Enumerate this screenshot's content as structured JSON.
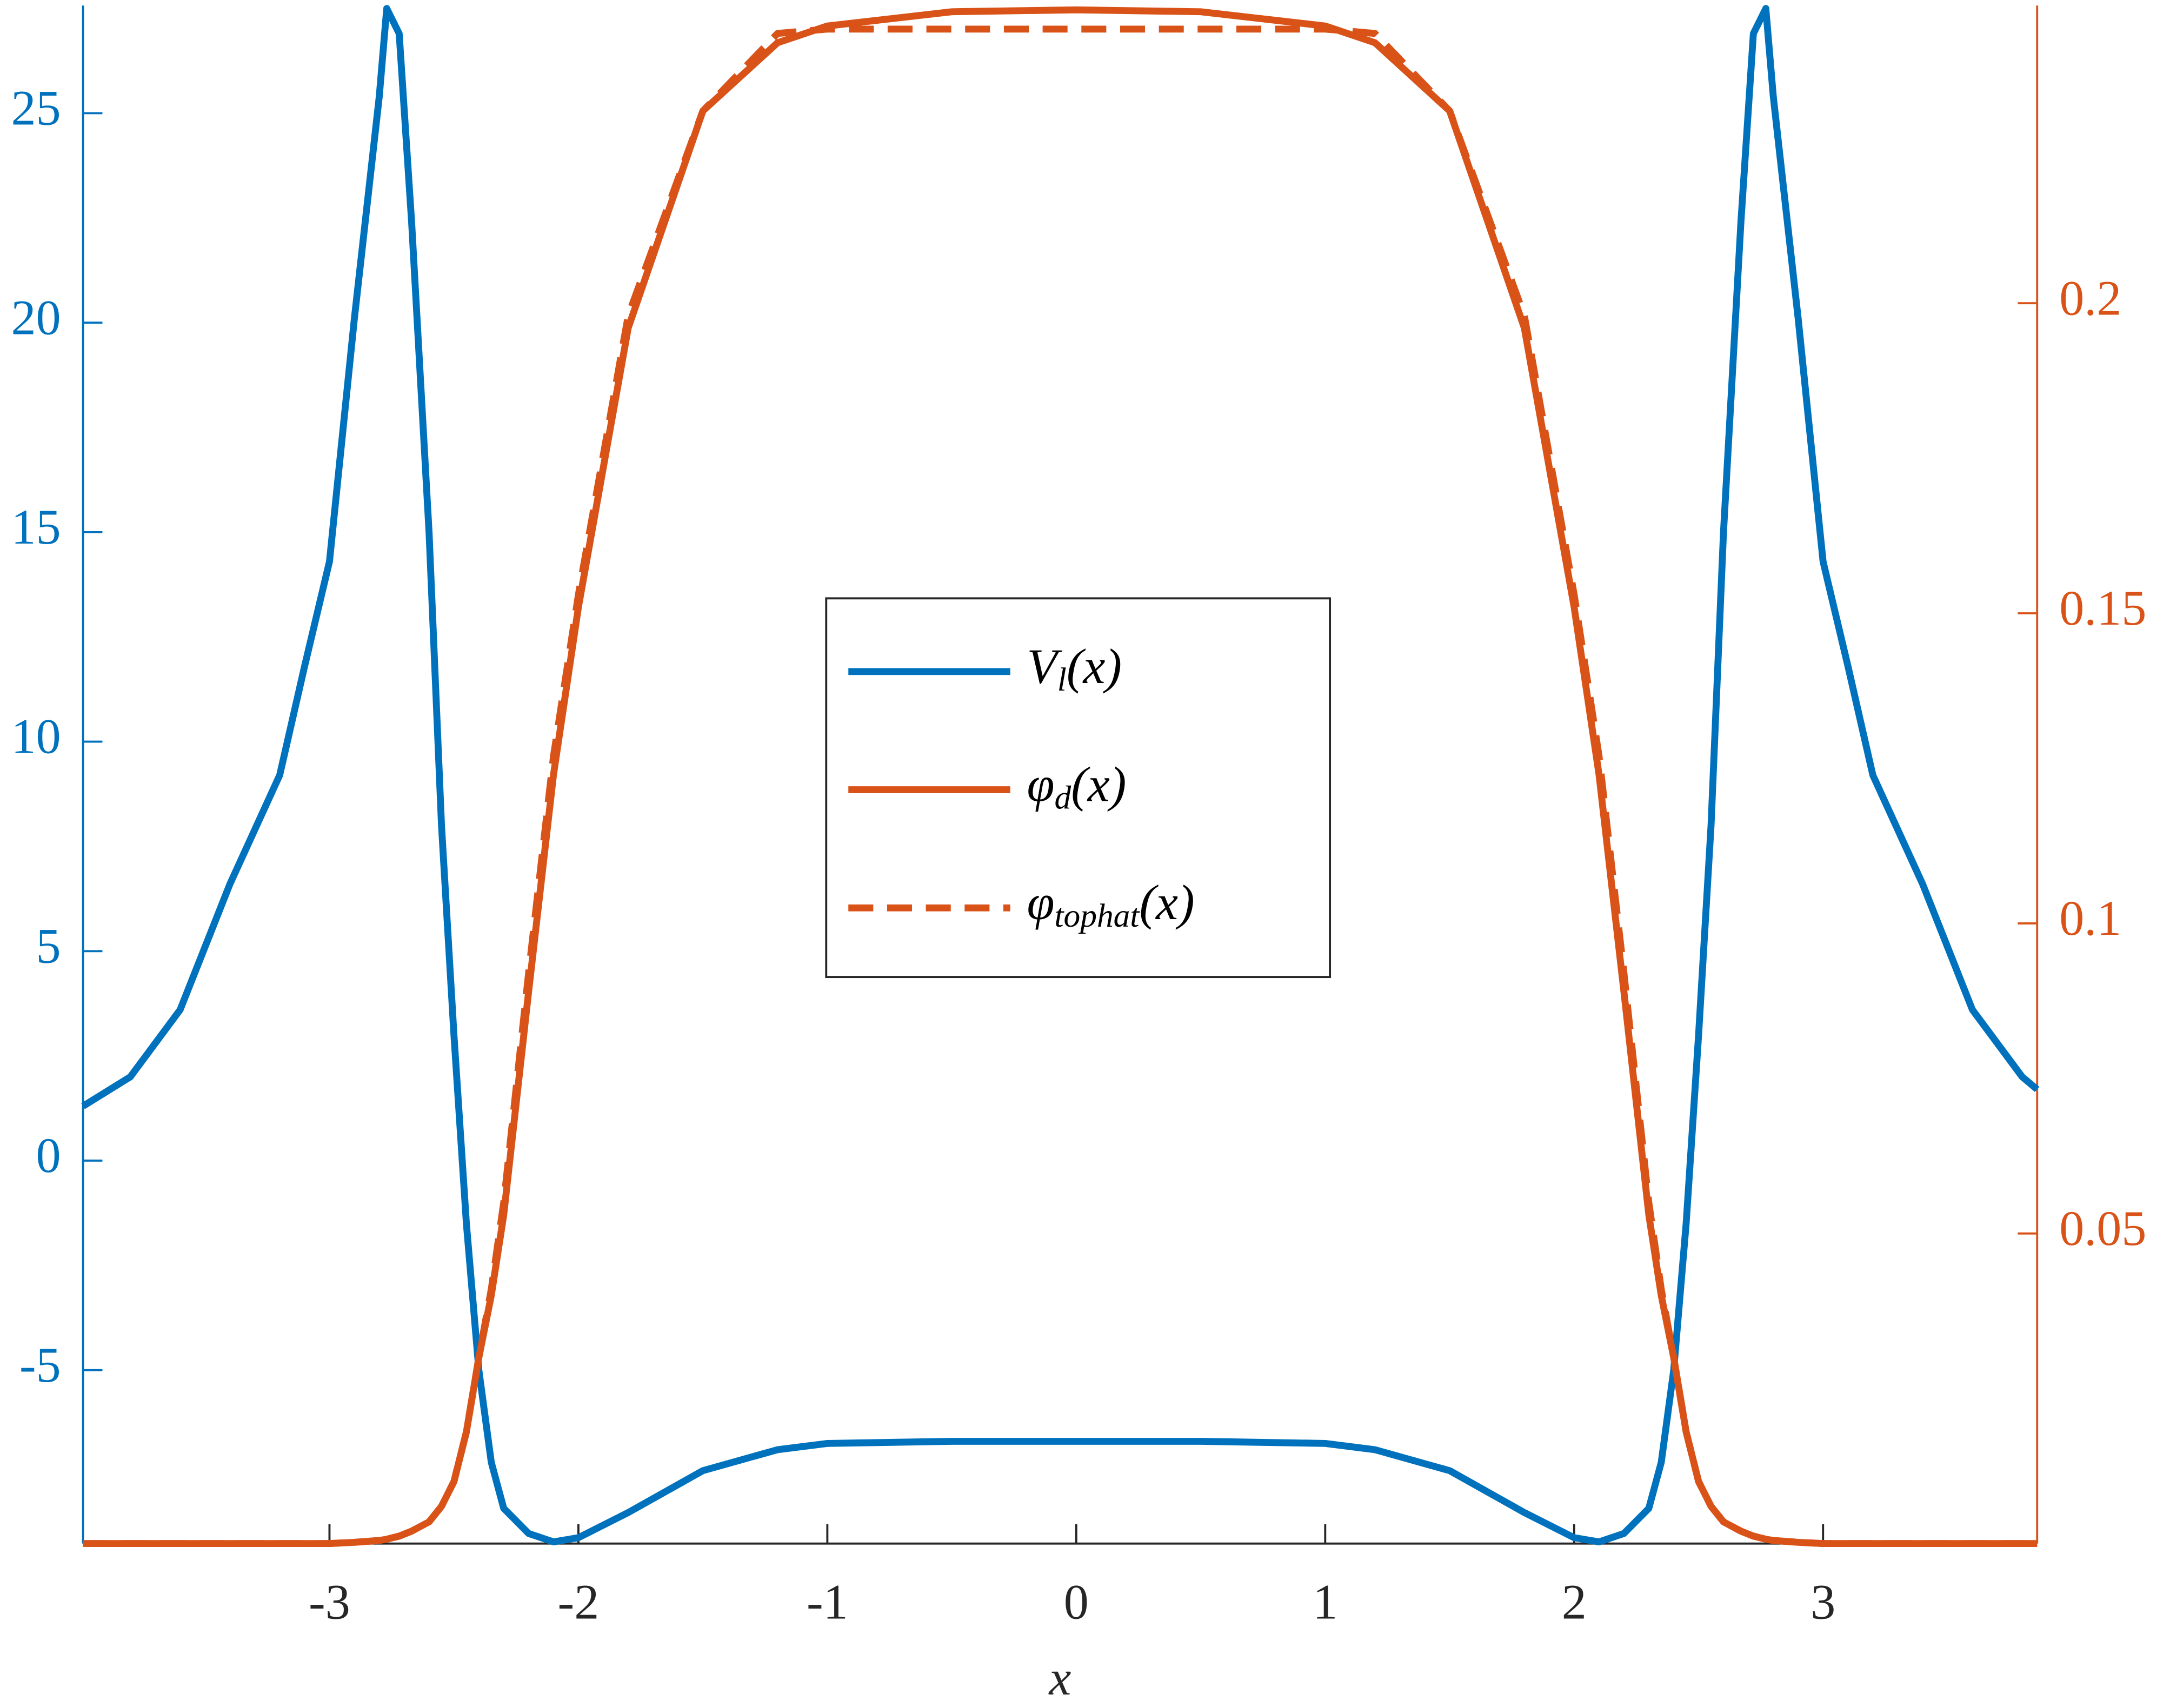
{
  "chart_data": {
    "type": "line",
    "x_label": "x",
    "x": [
      -3.99,
      -3.8,
      -3.6,
      -3.4,
      -3.2,
      -3.1,
      -3.0,
      -2.9,
      -2.8,
      -2.77,
      -2.72,
      -2.67,
      -2.6,
      -2.55,
      -2.5,
      -2.45,
      -2.4,
      -2.35,
      -2.3,
      -2.2,
      -2.1,
      -2.0,
      -1.8,
      -1.5,
      -1.2,
      -1.0,
      -0.5,
      0,
      0.5,
      1.0,
      1.2,
      1.5,
      1.8,
      2.0,
      2.1,
      2.2,
      2.3,
      2.35,
      2.4,
      2.45,
      2.5,
      2.55,
      2.6,
      2.67,
      2.72,
      2.77,
      2.8,
      2.9,
      3.0,
      3.1,
      3.2,
      3.4,
      3.6,
      3.8,
      3.86
    ],
    "series": [
      {
        "name": "V_l(x)",
        "color": "#0072BD",
        "dash": false,
        "values": [
          1.3,
          2.0,
          3.6,
          6.6,
          9.2,
          11.8,
          14.3,
          20.1,
          25.4,
          27.5,
          26.9,
          22.4,
          15,
          8,
          3,
          -1.5,
          -5,
          -7.2,
          -8.3,
          -8.9,
          -9.1,
          -9.0,
          -8.4,
          -7.4,
          -6.9,
          -6.75,
          -6.7,
          -6.7,
          -6.7,
          -6.75,
          -6.9,
          -7.4,
          -8.4,
          -9.0,
          -9.1,
          -8.9,
          -8.3,
          -7.2,
          -5,
          -1.5,
          3,
          8,
          15,
          22.4,
          26.9,
          27.5,
          25.4,
          20.1,
          14.3,
          11.8,
          9.2,
          6.6,
          3.6,
          2.0,
          1.7
        ]
      },
      {
        "name": "φ_d(x)",
        "color": "#D95319",
        "dash": false,
        "axis": "y2",
        "values": [
          0,
          0,
          0,
          0,
          0,
          0,
          0,
          0.0002,
          0.0005,
          0.0007,
          0.0012,
          0.002,
          0.0035,
          0.006,
          0.01,
          0.018,
          0.03,
          0.04,
          0.053,
          0.089,
          0.124,
          0.151,
          0.196,
          0.231,
          0.242,
          0.2447,
          0.247,
          0.2473,
          0.247,
          0.2447,
          0.242,
          0.231,
          0.196,
          0.151,
          0.124,
          0.089,
          0.053,
          0.04,
          0.03,
          0.018,
          0.01,
          0.006,
          0.0035,
          0.002,
          0.0012,
          0.0007,
          0.0005,
          0.0002,
          0,
          0,
          0,
          0,
          0,
          0,
          0
        ]
      },
      {
        "name": "φ_tophat(x)",
        "color": "#D95319",
        "dash": true,
        "axis": "y2",
        "values": [
          0,
          0,
          0,
          0,
          0,
          0,
          0,
          0.0002,
          0.0005,
          0.0007,
          0.0012,
          0.002,
          0.0035,
          0.006,
          0.01,
          0.018,
          0.03,
          0.041,
          0.055,
          0.092,
          0.127,
          0.153,
          0.198,
          0.231,
          0.2435,
          0.2442,
          0.2442,
          0.2442,
          0.2442,
          0.2442,
          0.2435,
          0.231,
          0.198,
          0.153,
          0.127,
          0.092,
          0.055,
          0.041,
          0.03,
          0.018,
          0.01,
          0.006,
          0.0035,
          0.002,
          0.0012,
          0.0007,
          0.0005,
          0.0002,
          0,
          0,
          0,
          0,
          0,
          0,
          0
        ]
      }
    ],
    "xlim": [
      -3.99,
      3.86
    ],
    "xticks": [
      -3,
      -2,
      -1,
      0,
      1,
      2,
      3
    ],
    "ylim": [
      -9.14,
      27.57
    ],
    "yticks": [
      -5,
      0,
      5,
      10,
      15,
      20,
      25
    ],
    "y2lim": [
      0,
      0.248
    ],
    "y2ticks": [
      0.05,
      0.1,
      0.15,
      0.2
    ],
    "grid": false,
    "legend": "center"
  }
}
